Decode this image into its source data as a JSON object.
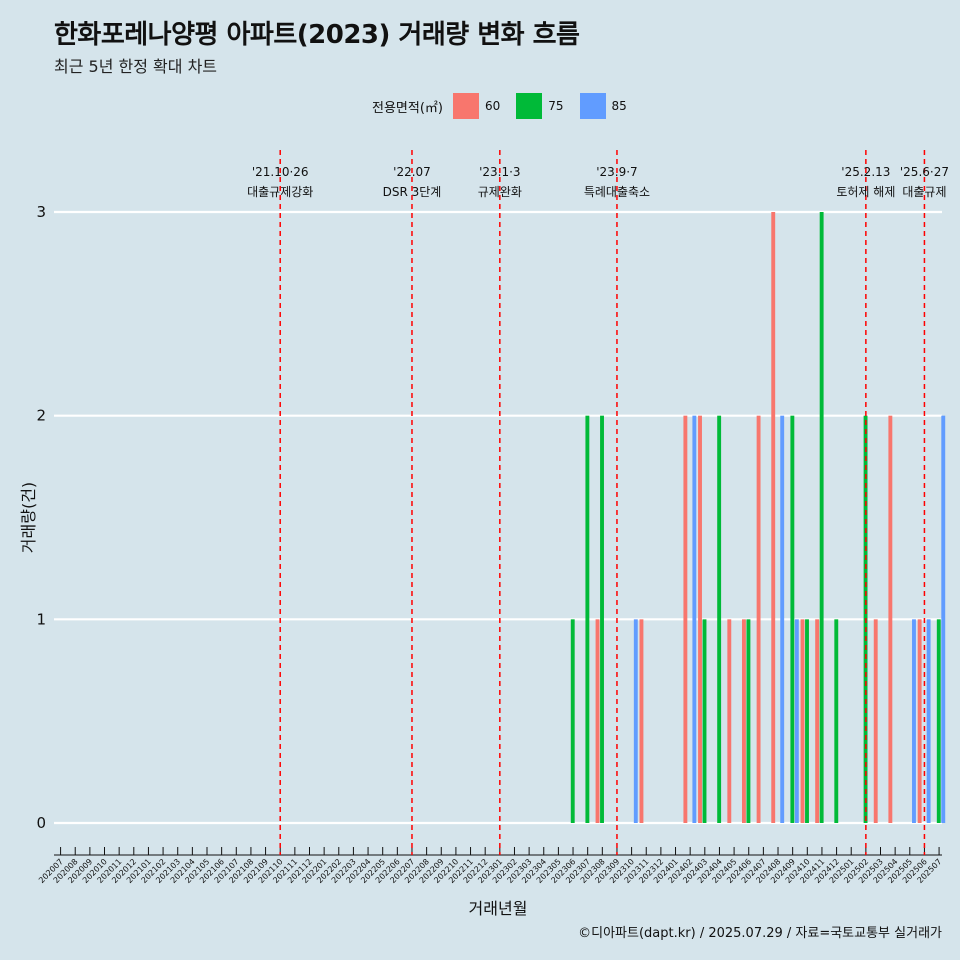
{
  "header": {
    "title": "한화포레나양평 아파트(2023) 거래량 변화 흐름",
    "subtitle": "최근 5년 한정 확대 차트"
  },
  "legend": {
    "title": "전용면적(㎡)",
    "items": [
      {
        "label": "60",
        "color": "#f8766d"
      },
      {
        "label": "75",
        "color": "#00ba38"
      },
      {
        "label": "85",
        "color": "#619cff"
      }
    ]
  },
  "caption": "©디아파트(dapt.kr) / 2025.07.29 / 자료=국토교통부 실거래가",
  "chart_data": {
    "type": "bar",
    "xlabel": "거래년월",
    "ylabel": "거래량(건)",
    "ylim": [
      0,
      3
    ],
    "yticks": [
      0,
      1,
      2,
      3
    ],
    "grid": true,
    "legend_position": "top",
    "categories": [
      "202007",
      "202008",
      "202009",
      "202010",
      "202011",
      "202012",
      "202101",
      "202102",
      "202103",
      "202104",
      "202105",
      "202106",
      "202107",
      "202108",
      "202109",
      "202110",
      "202111",
      "202112",
      "202201",
      "202202",
      "202203",
      "202204",
      "202205",
      "202206",
      "202207",
      "202208",
      "202209",
      "202210",
      "202211",
      "202212",
      "202301",
      "202302",
      "202303",
      "202304",
      "202305",
      "202306",
      "202307",
      "202308",
      "202309",
      "202310",
      "202311",
      "202312",
      "202401",
      "202402",
      "202403",
      "202404",
      "202405",
      "202406",
      "202407",
      "202408",
      "202409",
      "202410",
      "202411",
      "202412",
      "202501",
      "202502",
      "202503",
      "202504",
      "202505",
      "202506",
      "202507"
    ],
    "series": [
      {
        "name": "60",
        "color": "#f8766d",
        "values": [
          0,
          0,
          0,
          0,
          0,
          0,
          0,
          0,
          0,
          0,
          0,
          0,
          0,
          0,
          0,
          0,
          0,
          0,
          0,
          0,
          0,
          0,
          0,
          0,
          0,
          0,
          0,
          0,
          0,
          0,
          0,
          0,
          0,
          0,
          0,
          0,
          0,
          1,
          0,
          0,
          1,
          0,
          0,
          2,
          2,
          0,
          1,
          1,
          2,
          3,
          0,
          1,
          1,
          0,
          0,
          0,
          1,
          2,
          0,
          1,
          0
        ]
      },
      {
        "name": "75",
        "color": "#00ba38",
        "values": [
          0,
          0,
          0,
          0,
          0,
          0,
          0,
          0,
          0,
          0,
          0,
          0,
          0,
          0,
          0,
          0,
          0,
          0,
          0,
          0,
          0,
          0,
          0,
          0,
          0,
          0,
          0,
          0,
          0,
          0,
          0,
          0,
          0,
          0,
          0,
          1,
          2,
          2,
          0,
          0,
          0,
          0,
          0,
          0,
          1,
          2,
          0,
          1,
          0,
          0,
          2,
          1,
          3,
          1,
          0,
          2,
          0,
          0,
          0,
          0,
          1
        ]
      },
      {
        "name": "85",
        "color": "#619cff",
        "values": [
          0,
          0,
          0,
          0,
          0,
          0,
          0,
          0,
          0,
          0,
          0,
          0,
          0,
          0,
          0,
          0,
          0,
          0,
          0,
          0,
          0,
          0,
          0,
          0,
          0,
          0,
          0,
          0,
          0,
          0,
          0,
          0,
          0,
          0,
          0,
          0,
          0,
          0,
          0,
          1,
          0,
          0,
          0,
          2,
          0,
          0,
          0,
          0,
          0,
          2,
          1,
          0,
          0,
          0,
          0,
          0,
          0,
          0,
          1,
          1,
          2
        ]
      }
    ],
    "events": [
      {
        "at": "202110",
        "date": "'21.10·26",
        "label": "대출규제강화"
      },
      {
        "at": "202207",
        "date": "'22.07",
        "label": "DSR 3단계"
      },
      {
        "at": "202301",
        "date": "'23.1·3",
        "label": "규제완화"
      },
      {
        "at": "202309",
        "date": "'23.9·7",
        "label": "특례대출축소"
      },
      {
        "at": "202502",
        "date": "'25.2.13",
        "label": "토허제 해제"
      },
      {
        "at": "202506",
        "date": "'25.6·27",
        "label": "대출규제"
      }
    ]
  }
}
